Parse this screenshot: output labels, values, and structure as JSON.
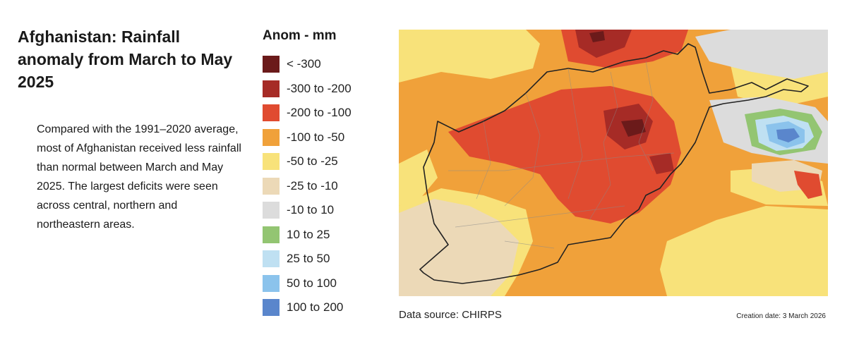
{
  "title": "Afghanistan: Rainfall anomaly from March to May 2025",
  "description": "Compared with the 1991–2020 average, most of Afghanistan received less rainfall than normal between March and May 2025. The largest deficits were seen across central, northern and northeastern areas.",
  "legend": {
    "title": "Anom - mm",
    "items": [
      {
        "label": "< -300",
        "color": "#6b1a1a"
      },
      {
        "label": "-300 to -200",
        "color": "#a62b26"
      },
      {
        "label": "-200 to -100",
        "color": "#e04b30"
      },
      {
        "label": "-100 to -50",
        "color": "#f0a13a"
      },
      {
        "label": "-50 to -25",
        "color": "#f8e27a"
      },
      {
        "label": "-25 to -10",
        "color": "#ecd9b7"
      },
      {
        "label": "-10 to 10",
        "color": "#dcdcdc"
      },
      {
        "label": "10 to 25",
        "color": "#93c572"
      },
      {
        "label": "25 to 50",
        "color": "#bfe0f2"
      },
      {
        "label": "50 to 100",
        "color": "#8bc3ec"
      },
      {
        "label": "100 to 200",
        "color": "#5a86cc"
      }
    ]
  },
  "source": "Data source: CHIRPS",
  "creation_date": "Creation date: 3 March 2026"
}
